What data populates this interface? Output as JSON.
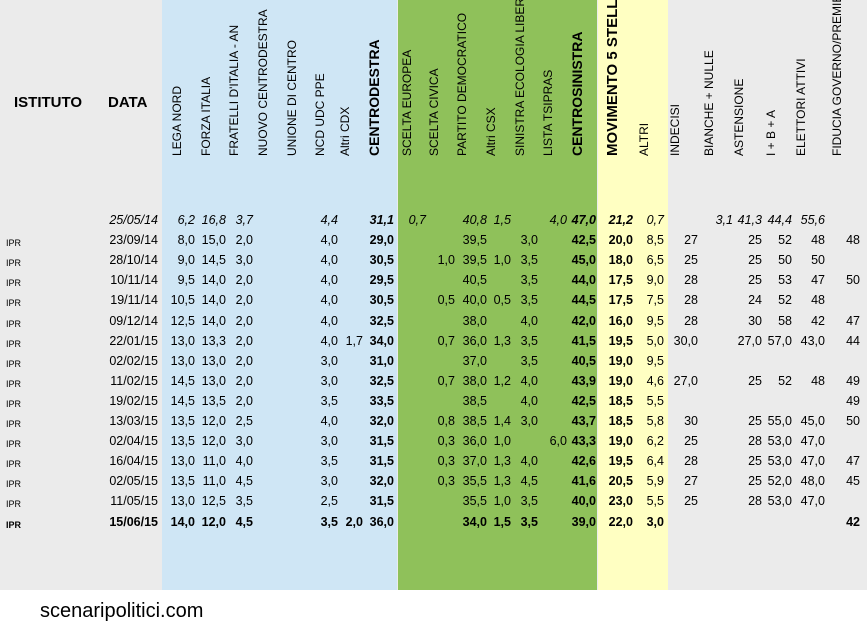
{
  "headers": {
    "istituto": "ISTITUTO",
    "data": "DATA",
    "lega": "LEGA NORD",
    "fi": "FORZA ITALIA",
    "fdi": "FRATELLI D'ITALIA - AN",
    "ncd": "NUOVO CENTRODESTRA",
    "udc": "UNIONE DI CENTRO",
    "ncdudc": "NCD UDC PPE",
    "altricdx": "Altri CDX",
    "cdx": "CENTRODESTRA",
    "sceltaeur": "SCELTA EUROPEA",
    "sceltaciv": "SCELTA CIVICA",
    "pd": "PARTITO DEMOCRATICO",
    "altricsx": "Altri CSX",
    "sel": "SINISTRA ECOLOGIA LIBERTA'",
    "tsipras": "LISTA TSIPRAS",
    "csx": "CENTROSINISTRA",
    "m5s": "MOVIMENTO 5 STELLE",
    "altri": "ALTRI",
    "indecisi": "INDECISI",
    "bianche": "BIANCHE + NULLE",
    "astensione": "ASTENSIONE",
    "ibplusa": "I + B + A",
    "elettori": "ELETTORI ATTIVI",
    "fiducia": "FIDUCIA GOVERNO/PREMIER"
  },
  "rows": [
    {
      "inst": "",
      "date": "25/05/14",
      "lega": "6,2",
      "fi": "16,8",
      "fdi": "3,7",
      "ncd": "",
      "udc": "",
      "ncdudc": "4,4",
      "altricdx": "",
      "cdx": "31,1",
      "sceltaeur": "0,7",
      "sceltaciv": "",
      "pd": "40,8",
      "altricsx": "1,5",
      "sel": "",
      "tsipras": "4,0",
      "csx": "47,0",
      "m5s": "21,2",
      "altri": "0,7",
      "indecisi": "",
      "bianche": "3,1",
      "astensione": "41,3",
      "ibplusa": "44,4",
      "elettori": "55,6",
      "fiducia": ""
    },
    {
      "inst": "IPR",
      "date": "23/09/14",
      "lega": "8,0",
      "fi": "15,0",
      "fdi": "2,0",
      "ncd": "",
      "udc": "",
      "ncdudc": "4,0",
      "altricdx": "",
      "cdx": "29,0",
      "sceltaeur": "",
      "sceltaciv": "",
      "pd": "39,5",
      "altricsx": "",
      "sel": "3,0",
      "tsipras": "",
      "csx": "42,5",
      "m5s": "20,0",
      "altri": "8,5",
      "indecisi": "27",
      "bianche": "",
      "astensione": "25",
      "ibplusa": "52",
      "elettori": "48",
      "fiducia": "48"
    },
    {
      "inst": "IPR",
      "date": "28/10/14",
      "lega": "9,0",
      "fi": "14,5",
      "fdi": "3,0",
      "ncd": "",
      "udc": "",
      "ncdudc": "4,0",
      "altricdx": "",
      "cdx": "30,5",
      "sceltaeur": "",
      "sceltaciv": "1,0",
      "pd": "39,5",
      "altricsx": "1,0",
      "sel": "3,5",
      "tsipras": "",
      "csx": "45,0",
      "m5s": "18,0",
      "altri": "6,5",
      "indecisi": "25",
      "bianche": "",
      "astensione": "25",
      "ibplusa": "50",
      "elettori": "50",
      "fiducia": ""
    },
    {
      "inst": "IPR",
      "date": "10/11/14",
      "lega": "9,5",
      "fi": "14,0",
      "fdi": "2,0",
      "ncd": "",
      "udc": "",
      "ncdudc": "4,0",
      "altricdx": "",
      "cdx": "29,5",
      "sceltaeur": "",
      "sceltaciv": "",
      "pd": "40,5",
      "altricsx": "",
      "sel": "3,5",
      "tsipras": "",
      "csx": "44,0",
      "m5s": "17,5",
      "altri": "9,0",
      "indecisi": "28",
      "bianche": "",
      "astensione": "25",
      "ibplusa": "53",
      "elettori": "47",
      "fiducia": "50"
    },
    {
      "inst": "IPR",
      "date": "19/11/14",
      "lega": "10,5",
      "fi": "14,0",
      "fdi": "2,0",
      "ncd": "",
      "udc": "",
      "ncdudc": "4,0",
      "altricdx": "",
      "cdx": "30,5",
      "sceltaeur": "",
      "sceltaciv": "0,5",
      "pd": "40,0",
      "altricsx": "0,5",
      "sel": "3,5",
      "tsipras": "",
      "csx": "44,5",
      "m5s": "17,5",
      "altri": "7,5",
      "indecisi": "28",
      "bianche": "",
      "astensione": "24",
      "ibplusa": "52",
      "elettori": "48",
      "fiducia": ""
    },
    {
      "inst": "IPR",
      "date": "09/12/14",
      "lega": "12,5",
      "fi": "14,0",
      "fdi": "2,0",
      "ncd": "",
      "udc": "",
      "ncdudc": "4,0",
      "altricdx": "",
      "cdx": "32,5",
      "sceltaeur": "",
      "sceltaciv": "",
      "pd": "38,0",
      "altricsx": "",
      "sel": "4,0",
      "tsipras": "",
      "csx": "42,0",
      "m5s": "16,0",
      "altri": "9,5",
      "indecisi": "28",
      "bianche": "",
      "astensione": "30",
      "ibplusa": "58",
      "elettori": "42",
      "fiducia": "47"
    },
    {
      "inst": "IPR",
      "date": "22/01/15",
      "lega": "13,0",
      "fi": "13,3",
      "fdi": "2,0",
      "ncd": "",
      "udc": "",
      "ncdudc": "4,0",
      "altricdx": "1,7",
      "cdx": "34,0",
      "sceltaeur": "",
      "sceltaciv": "0,7",
      "pd": "36,0",
      "altricsx": "1,3",
      "sel": "3,5",
      "tsipras": "",
      "csx": "41,5",
      "m5s": "19,5",
      "altri": "5,0",
      "indecisi": "30,0",
      "bianche": "",
      "astensione": "27,0",
      "ibplusa": "57,0",
      "elettori": "43,0",
      "fiducia": "44"
    },
    {
      "inst": "IPR",
      "date": "02/02/15",
      "lega": "13,0",
      "fi": "13,0",
      "fdi": "2,0",
      "ncd": "",
      "udc": "",
      "ncdudc": "3,0",
      "altricdx": "",
      "cdx": "31,0",
      "sceltaeur": "",
      "sceltaciv": "",
      "pd": "37,0",
      "altricsx": "",
      "sel": "3,5",
      "tsipras": "",
      "csx": "40,5",
      "m5s": "19,0",
      "altri": "9,5",
      "indecisi": "",
      "bianche": "",
      "astensione": "",
      "ibplusa": "",
      "elettori": "",
      "fiducia": ""
    },
    {
      "inst": "IPR",
      "date": "11/02/15",
      "lega": "14,5",
      "fi": "13,0",
      "fdi": "2,0",
      "ncd": "",
      "udc": "",
      "ncdudc": "3,0",
      "altricdx": "",
      "cdx": "32,5",
      "sceltaeur": "",
      "sceltaciv": "0,7",
      "pd": "38,0",
      "altricsx": "1,2",
      "sel": "4,0",
      "tsipras": "",
      "csx": "43,9",
      "m5s": "19,0",
      "altri": "4,6",
      "indecisi": "27,0",
      "bianche": "",
      "astensione": "25",
      "ibplusa": "52",
      "elettori": "48",
      "fiducia": "49"
    },
    {
      "inst": "IPR",
      "date": "19/02/15",
      "lega": "14,5",
      "fi": "13,5",
      "fdi": "2,0",
      "ncd": "",
      "udc": "",
      "ncdudc": "3,5",
      "altricdx": "",
      "cdx": "33,5",
      "sceltaeur": "",
      "sceltaciv": "",
      "pd": "38,5",
      "altricsx": "",
      "sel": "4,0",
      "tsipras": "",
      "csx": "42,5",
      "m5s": "18,5",
      "altri": "5,5",
      "indecisi": "",
      "bianche": "",
      "astensione": "",
      "ibplusa": "",
      "elettori": "",
      "fiducia": "49"
    },
    {
      "inst": "IPR",
      "date": "13/03/15",
      "lega": "13,5",
      "fi": "12,0",
      "fdi": "2,5",
      "ncd": "",
      "udc": "",
      "ncdudc": "4,0",
      "altricdx": "",
      "cdx": "32,0",
      "sceltaeur": "",
      "sceltaciv": "0,8",
      "pd": "38,5",
      "altricsx": "1,4",
      "sel": "3,0",
      "tsipras": "",
      "csx": "43,7",
      "m5s": "18,5",
      "altri": "5,8",
      "indecisi": "30",
      "bianche": "",
      "astensione": "25",
      "ibplusa": "55,0",
      "elettori": "45,0",
      "fiducia": "50"
    },
    {
      "inst": "IPR",
      "date": "02/04/15",
      "lega": "13,5",
      "fi": "12,0",
      "fdi": "3,0",
      "ncd": "",
      "udc": "",
      "ncdudc": "3,0",
      "altricdx": "",
      "cdx": "31,5",
      "sceltaeur": "",
      "sceltaciv": "0,3",
      "pd": "36,0",
      "altricsx": "1,0",
      "sel": "",
      "tsipras": "6,0",
      "csx": "43,3",
      "m5s": "19,0",
      "altri": "6,2",
      "indecisi": "25",
      "bianche": "",
      "astensione": "28",
      "ibplusa": "53,0",
      "elettori": "47,0",
      "fiducia": ""
    },
    {
      "inst": "IPR",
      "date": "16/04/15",
      "lega": "13,0",
      "fi": "11,0",
      "fdi": "4,0",
      "ncd": "",
      "udc": "",
      "ncdudc": "3,5",
      "altricdx": "",
      "cdx": "31,5",
      "sceltaeur": "",
      "sceltaciv": "0,3",
      "pd": "37,0",
      "altricsx": "1,3",
      "sel": "4,0",
      "tsipras": "",
      "csx": "42,6",
      "m5s": "19,5",
      "altri": "6,4",
      "indecisi": "28",
      "bianche": "",
      "astensione": "25",
      "ibplusa": "53,0",
      "elettori": "47,0",
      "fiducia": "47"
    },
    {
      "inst": "IPR",
      "date": "02/05/15",
      "lega": "13,5",
      "fi": "11,0",
      "fdi": "4,5",
      "ncd": "",
      "udc": "",
      "ncdudc": "3,0",
      "altricdx": "",
      "cdx": "32,0",
      "sceltaeur": "",
      "sceltaciv": "0,3",
      "pd": "35,5",
      "altricsx": "1,3",
      "sel": "4,5",
      "tsipras": "",
      "csx": "41,6",
      "m5s": "20,5",
      "altri": "5,9",
      "indecisi": "27",
      "bianche": "",
      "astensione": "25",
      "ibplusa": "52,0",
      "elettori": "48,0",
      "fiducia": "45"
    },
    {
      "inst": "IPR",
      "date": "11/05/15",
      "lega": "13,0",
      "fi": "12,5",
      "fdi": "3,5",
      "ncd": "",
      "udc": "",
      "ncdudc": "2,5",
      "altricdx": "",
      "cdx": "31,5",
      "sceltaeur": "",
      "sceltaciv": "",
      "pd": "35,5",
      "altricsx": "1,0",
      "sel": "3,5",
      "tsipras": "",
      "csx": "40,0",
      "m5s": "23,0",
      "altri": "5,5",
      "indecisi": "25",
      "bianche": "",
      "astensione": "28",
      "ibplusa": "53,0",
      "elettori": "47,0",
      "fiducia": ""
    },
    {
      "inst": "IPR",
      "date": "15/06/15",
      "lega": "14,0",
      "fi": "12,0",
      "fdi": "4,5",
      "ncd": "",
      "udc": "",
      "ncdudc": "3,5",
      "altricdx": "2,0",
      "cdx": "36,0",
      "sceltaeur": "",
      "sceltaciv": "",
      "pd": "34,0",
      "altricsx": "1,5",
      "sel": "3,5",
      "tsipras": "",
      "csx": "39,0",
      "m5s": "22,0",
      "altri": "3,0",
      "indecisi": "",
      "bianche": "",
      "astensione": "",
      "ibplusa": "",
      "elettori": "",
      "fiducia": "42"
    }
  ],
  "footer": "scenaripolitici.com",
  "colors": {
    "sheet": "#ebebeb",
    "cdx_band": "#cfe6f5",
    "csx_band": "#8fc15a",
    "m5s_band": "#ffffc2"
  }
}
